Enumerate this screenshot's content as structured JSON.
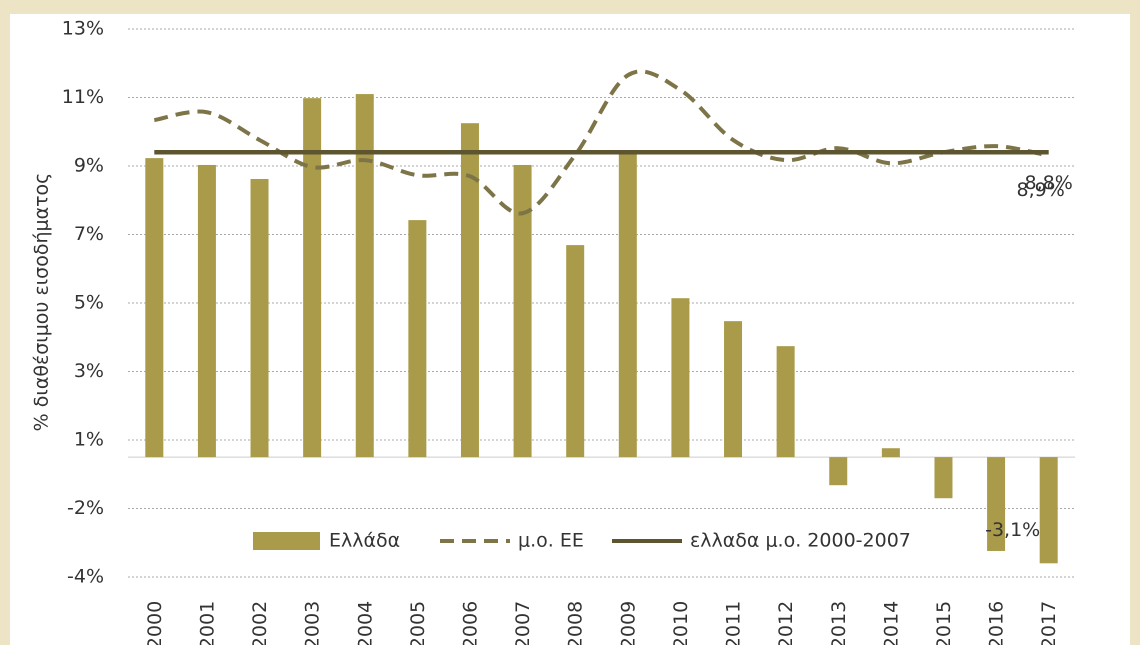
{
  "chart_data": {
    "type": "bar",
    "y_axis_label": "% διαθέσιμου εισοδήματος",
    "categories": [
      "2000",
      "2001",
      "2002",
      "2003",
      "2004",
      "2005",
      "2006",
      "2007",
      "2008",
      "2009",
      "2010",
      "2011",
      "2012",
      "2013",
      "2014",
      "2015",
      "2016",
      "2017"
    ],
    "series": [
      {
        "name": "Ελλάδα",
        "type": "bar",
        "color": "#a99b4a",
        "values": [
          8.73,
          8.53,
          8.12,
          10.48,
          10.6,
          6.92,
          9.75,
          8.53,
          6.19,
          8.96,
          4.64,
          3.97,
          3.24,
          -0.82,
          0.26,
          -1.2,
          -2.74,
          -3.1
        ],
        "value_labels": [
          null,
          null,
          null,
          null,
          null,
          null,
          null,
          null,
          null,
          null,
          null,
          null,
          null,
          null,
          null,
          null,
          null,
          "-3,1%"
        ]
      },
      {
        "name": "μ.ο. ΕΕ",
        "type": "line",
        "dash": true,
        "color": "#7d7448",
        "values": [
          9.84,
          10.07,
          9.26,
          8.47,
          8.67,
          8.23,
          8.2,
          7.12,
          8.82,
          11.15,
          10.72,
          9.26,
          8.67,
          9.02,
          8.58,
          8.9,
          9.08,
          8.8
        ],
        "value_labels": [
          null,
          null,
          null,
          null,
          null,
          null,
          null,
          null,
          null,
          null,
          null,
          null,
          null,
          null,
          null,
          null,
          null,
          "8,8%"
        ]
      },
      {
        "name": "ελλαδα μ.ο. 2000-2007",
        "type": "line",
        "dash": false,
        "color": "#5c5530",
        "values": [
          8.9,
          8.9,
          8.9,
          8.9,
          8.9,
          8.9,
          8.9,
          8.9,
          8.9,
          8.9,
          8.9,
          8.9,
          8.9,
          8.9,
          8.9,
          8.9,
          8.9,
          8.9
        ],
        "value_labels": [
          null,
          null,
          null,
          null,
          null,
          null,
          null,
          null,
          null,
          null,
          null,
          null,
          null,
          null,
          null,
          null,
          null,
          "8,9%"
        ]
      }
    ],
    "ylim": [
      -3.5,
      12.5
    ],
    "yticks": [
      {
        "value": 12.5,
        "label": "13%"
      },
      {
        "value": 10.5,
        "label": "11%"
      },
      {
        "value": 8.5,
        "label": "9%"
      },
      {
        "value": 6.5,
        "label": "7%"
      },
      {
        "value": 4.5,
        "label": "5%"
      },
      {
        "value": 2.5,
        "label": "3%"
      },
      {
        "value": 0.5,
        "label": "1%"
      },
      {
        "value": -1.5,
        "label": "-2%"
      },
      {
        "value": -3.5,
        "label": "-4%"
      }
    ],
    "grid": true,
    "legend": "bottom"
  }
}
